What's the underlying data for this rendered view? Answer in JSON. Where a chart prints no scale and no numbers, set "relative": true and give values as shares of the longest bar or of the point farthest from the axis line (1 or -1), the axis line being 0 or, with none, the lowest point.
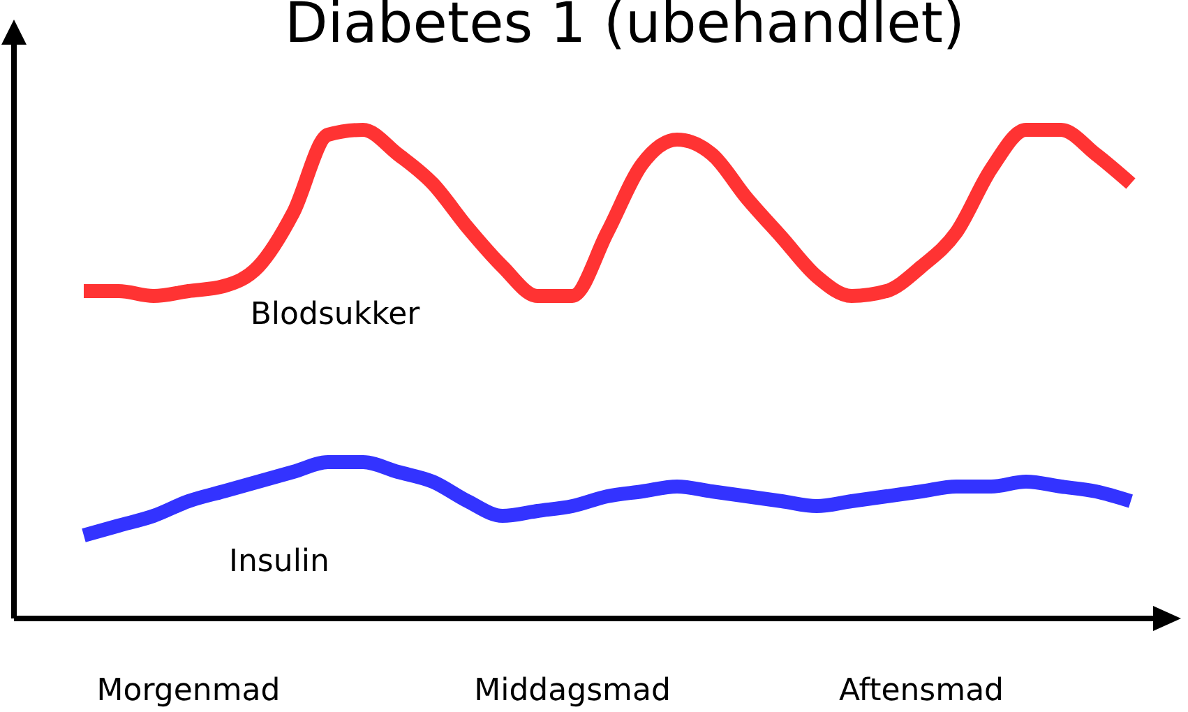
{
  "chart_data": {
    "type": "line",
    "title": "Diabetes 1 (ubehandlet)",
    "relative": true,
    "marker": "none",
    "line_style": "solid",
    "categories": [
      null,
      null,
      null,
      null,
      null,
      "Morgenmad",
      null,
      null,
      null,
      null,
      null,
      null,
      null,
      null,
      null,
      null,
      "Middagsmad",
      null,
      null,
      null,
      null,
      null,
      null,
      null,
      null,
      null,
      "Aftensmad",
      null,
      null,
      null,
      null,
      null,
      null,
      null
    ],
    "series": [
      {
        "name": "Blodsukker",
        "color": "#ff3333",
        "values": [
          null,
          null,
          0.67,
          0.67,
          0.66,
          0.67,
          0.68,
          0.72,
          0.83,
          0.99,
          1,
          0.95,
          0.89,
          0.8,
          0.72,
          0.66,
          0.66,
          0.79,
          0.93,
          0.98,
          0.95,
          0.86,
          0.78,
          0.7,
          0.66,
          0.67,
          0.72,
          0.79,
          0.92,
          1,
          1,
          0.95,
          0.89,
          null
        ]
      },
      {
        "name": "Insulin",
        "color": "#3333ff",
        "values": [
          null,
          null,
          0.17,
          0.19,
          0.21,
          0.24,
          0.26,
          0.28,
          0.3,
          0.32,
          0.32,
          0.3,
          0.28,
          0.24,
          0.21,
          0.22,
          0.23,
          0.25,
          0.26,
          0.27,
          0.26,
          0.25,
          0.24,
          0.23,
          0.24,
          0.25,
          0.26,
          0.27,
          0.27,
          0.28,
          0.27,
          0.26,
          0.24,
          null
        ]
      }
    ]
  }
}
